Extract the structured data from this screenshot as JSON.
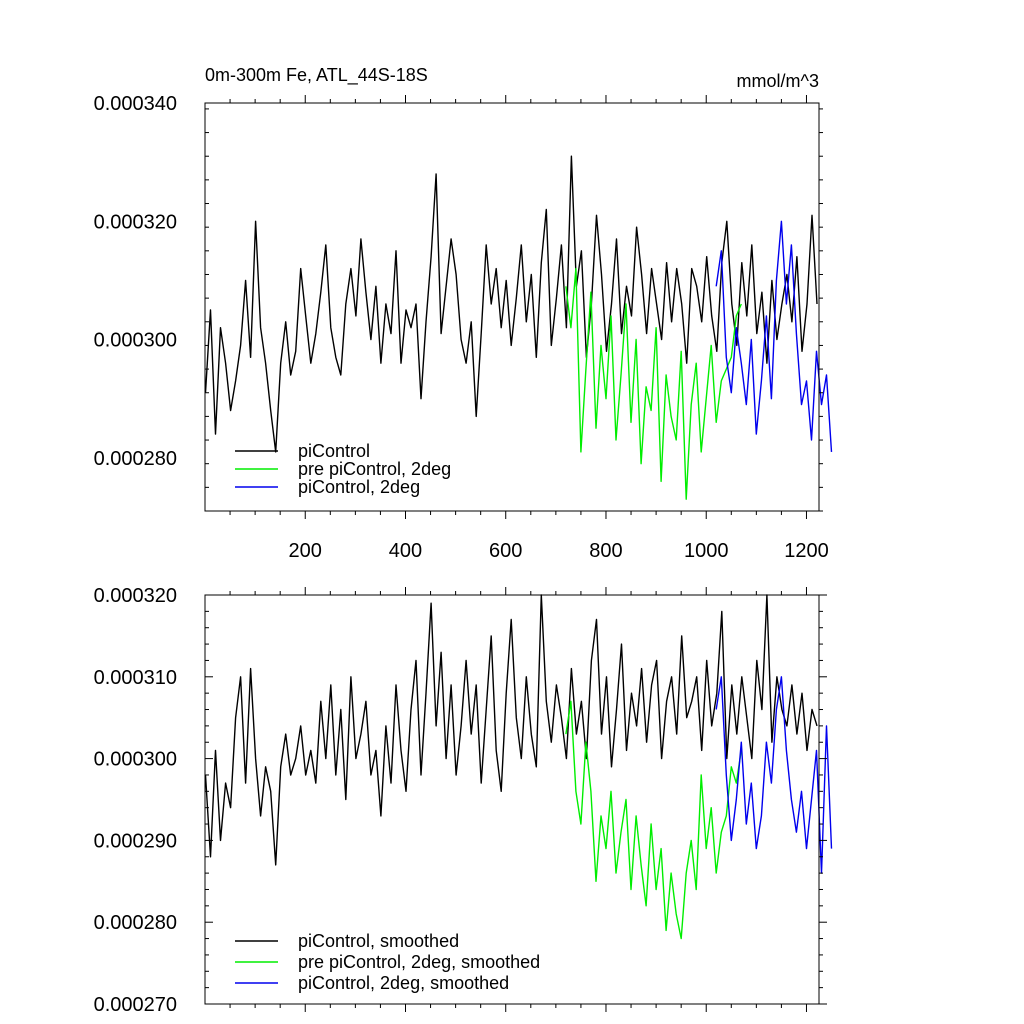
{
  "figure": {
    "title": "0m-300m Fe, ATL_44S-18S",
    "units": "mmol/m^3"
  },
  "chart_data": [
    {
      "type": "line",
      "title": "0m-300m Fe, ATL_44S-18S",
      "units_label": "mmol/m^3",
      "xlabel": "",
      "ylabel": "",
      "xlim": [
        0,
        1225
      ],
      "ylim": [
        0.000271,
        0.00034
      ],
      "xticks": [
        200,
        400,
        600,
        800,
        1000,
        1200
      ],
      "xtick_labels": [
        "200",
        "400",
        "600",
        "800",
        "1000",
        "1200"
      ],
      "yticks": [
        0.00028,
        0.0003,
        0.00032,
        0.00034
      ],
      "ytick_labels": [
        "0.000280",
        "0.000300",
        "0.000320",
        "0.000340"
      ],
      "grid": false,
      "legend_position": "bottom-left",
      "series": [
        {
          "name": "piControl",
          "color": "#000000",
          "x_start": 1,
          "x_step": 10,
          "values": [
            0.000291,
            0.000305,
            0.000284,
            0.000302,
            0.000296,
            0.000288,
            0.000293,
            0.000299,
            0.00031,
            0.000297,
            0.00032,
            0.000302,
            0.000296,
            0.000288,
            0.000281,
            0.000296,
            0.000303,
            0.000294,
            0.000298,
            0.000312,
            0.000304,
            0.000296,
            0.000301,
            0.000308,
            0.000316,
            0.000302,
            0.000297,
            0.000294,
            0.000306,
            0.000312,
            0.000304,
            0.000317,
            0.000308,
            0.0003,
            0.000309,
            0.000296,
            0.000306,
            0.000301,
            0.000315,
            0.000296,
            0.000305,
            0.000302,
            0.000306,
            0.00029,
            0.000303,
            0.000314,
            0.000328,
            0.000301,
            0.000309,
            0.000317,
            0.000311,
            0.0003,
            0.000296,
            0.000303,
            0.000287,
            0.000301,
            0.000316,
            0.000306,
            0.000312,
            0.000302,
            0.00031,
            0.000299,
            0.000307,
            0.000316,
            0.000303,
            0.000311,
            0.000297,
            0.000313,
            0.000322,
            0.000299,
            0.000307,
            0.000316,
            0.000302,
            0.000331,
            0.000309,
            0.000315,
            0.000297,
            0.000306,
            0.000321,
            0.000311,
            0.000298,
            0.000306,
            0.000317,
            0.000301,
            0.000309,
            0.000304,
            0.000319,
            0.000311,
            0.000301,
            0.000312,
            0.000306,
            0.0003,
            0.000313,
            0.000303,
            0.000312,
            0.000306,
            0.000296,
            0.000312,
            0.000309,
            0.000303,
            0.000314,
            0.000304,
            0.000298,
            0.000313,
            0.00032,
            0.000306,
            0.000299,
            0.000313,
            0.000304,
            0.000316,
            0.000301,
            0.000308,
            0.000296,
            0.00031,
            0.0003,
            0.000306,
            0.000311,
            0.000303,
            0.000314,
            0.000298,
            0.000306,
            0.000321,
            0.000306
          ]
        },
        {
          "name": "pre piControl, 2deg",
          "color": "#00ee00",
          "x_start": 720,
          "x_step": 10,
          "values": [
            0.000309,
            0.000302,
            0.000312,
            0.000281,
            0.000295,
            0.000308,
            0.000285,
            0.000299,
            0.00029,
            0.000304,
            0.000283,
            0.000294,
            0.000306,
            0.000286,
            0.0003,
            0.000279,
            0.000292,
            0.000288,
            0.000302,
            0.000276,
            0.000294,
            0.000287,
            0.000283,
            0.000298,
            0.000273,
            0.000289,
            0.000296,
            0.000281,
            0.00029,
            0.000299,
            0.000286,
            0.000293,
            0.000295,
            0.000297,
            0.000304,
            0.000306
          ]
        },
        {
          "name": "piControl, 2deg",
          "color": "#0000ee",
          "x_start": 1020,
          "x_step": 10,
          "values": [
            0.000309,
            0.000315,
            0.000297,
            0.000291,
            0.000302,
            0.000296,
            0.000289,
            0.0003,
            0.000284,
            0.000293,
            0.000304,
            0.00029,
            0.00031,
            0.00032,
            0.000306,
            0.000316,
            0.000301,
            0.000289,
            0.000293,
            0.000283,
            0.000298,
            0.000289,
            0.000294,
            0.000281
          ]
        }
      ]
    },
    {
      "type": "line",
      "title": "",
      "xlabel": "",
      "ylabel": "",
      "xlim": [
        0,
        1225
      ],
      "ylim": [
        0.00027,
        0.00032
      ],
      "xticks": [
        200,
        400,
        600,
        800,
        1000,
        1200
      ],
      "yticks": [
        0.00027,
        0.00028,
        0.00029,
        0.0003,
        0.00031,
        0.00032
      ],
      "ytick_labels": [
        "0.000270",
        "0.000280",
        "0.000290",
        "0.000300",
        "0.000310",
        "0.000320"
      ],
      "grid": false,
      "legend_position": "bottom-left",
      "series": [
        {
          "name": "piControl, smoothed",
          "color": "#000000",
          "x_start": 1,
          "x_step": 10,
          "values": [
            0.000298,
            0.000288,
            0.000301,
            0.00029,
            0.000297,
            0.000294,
            0.000305,
            0.00031,
            0.000297,
            0.000311,
            0.0003,
            0.000293,
            0.000299,
            0.000296,
            0.000287,
            0.000299,
            0.000303,
            0.000298,
            0.0003,
            0.000304,
            0.000298,
            0.000301,
            0.000297,
            0.000307,
            0.0003,
            0.000309,
            0.000298,
            0.000306,
            0.000295,
            0.00031,
            0.0003,
            0.000303,
            0.000307,
            0.000298,
            0.000301,
            0.000293,
            0.000304,
            0.000297,
            0.000309,
            0.000301,
            0.000296,
            0.000306,
            0.000312,
            0.000298,
            0.000308,
            0.000319,
            0.000304,
            0.000313,
            0.0003,
            0.000309,
            0.000298,
            0.000304,
            0.000312,
            0.000303,
            0.000309,
            0.000297,
            0.000306,
            0.000315,
            0.000301,
            0.000296,
            0.000308,
            0.000317,
            0.000305,
            0.0003,
            0.00031,
            0.000303,
            0.000299,
            0.00032,
            0.000307,
            0.000302,
            0.000309,
            0.000305,
            0.0003,
            0.000311,
            0.000303,
            0.000307,
            0.0003,
            0.000312,
            0.000317,
            0.000303,
            0.00031,
            0.000299,
            0.000306,
            0.000314,
            0.000301,
            0.000308,
            0.000304,
            0.000311,
            0.000302,
            0.000309,
            0.000312,
            0.0003,
            0.000307,
            0.00031,
            0.000303,
            0.000315,
            0.000305,
            0.000307,
            0.00031,
            0.000301,
            0.000312,
            0.000304,
            0.000308,
            0.000318,
            0.0003,
            0.000309,
            0.000303,
            0.00031,
            0.000305,
            0.0003,
            0.000312,
            0.000306,
            0.00032,
            0.000302,
            0.00031,
            0.000306,
            0.000304,
            0.000309,
            0.000303,
            0.000308,
            0.000301,
            0.000306,
            0.000304
          ]
        },
        {
          "name": "pre piControl, 2deg, smoothed",
          "color": "#00ee00",
          "x_start": 720,
          "x_step": 10,
          "values": [
            0.000303,
            0.000307,
            0.000296,
            0.000292,
            0.000302,
            0.000296,
            0.000285,
            0.000293,
            0.000289,
            0.000296,
            0.000286,
            0.000291,
            0.000295,
            0.000284,
            0.000293,
            0.000287,
            0.000282,
            0.000292,
            0.000284,
            0.000289,
            0.000279,
            0.000286,
            0.000281,
            0.000278,
            0.000286,
            0.00029,
            0.000284,
            0.000298,
            0.000289,
            0.000294,
            0.000286,
            0.000291,
            0.000293,
            0.000299,
            0.000297,
            0.000301
          ]
        },
        {
          "name": "piControl, 2deg, smoothed",
          "color": "#0000ee",
          "x_start": 1020,
          "x_step": 10,
          "values": [
            0.000306,
            0.00031,
            0.000298,
            0.00029,
            0.000295,
            0.000302,
            0.000292,
            0.000297,
            0.000289,
            0.000293,
            0.000302,
            0.000297,
            0.000306,
            0.00031,
            0.000301,
            0.000295,
            0.000291,
            0.000296,
            0.000289,
            0.000295,
            0.000301,
            0.000286,
            0.000304,
            0.000289
          ]
        }
      ]
    }
  ]
}
